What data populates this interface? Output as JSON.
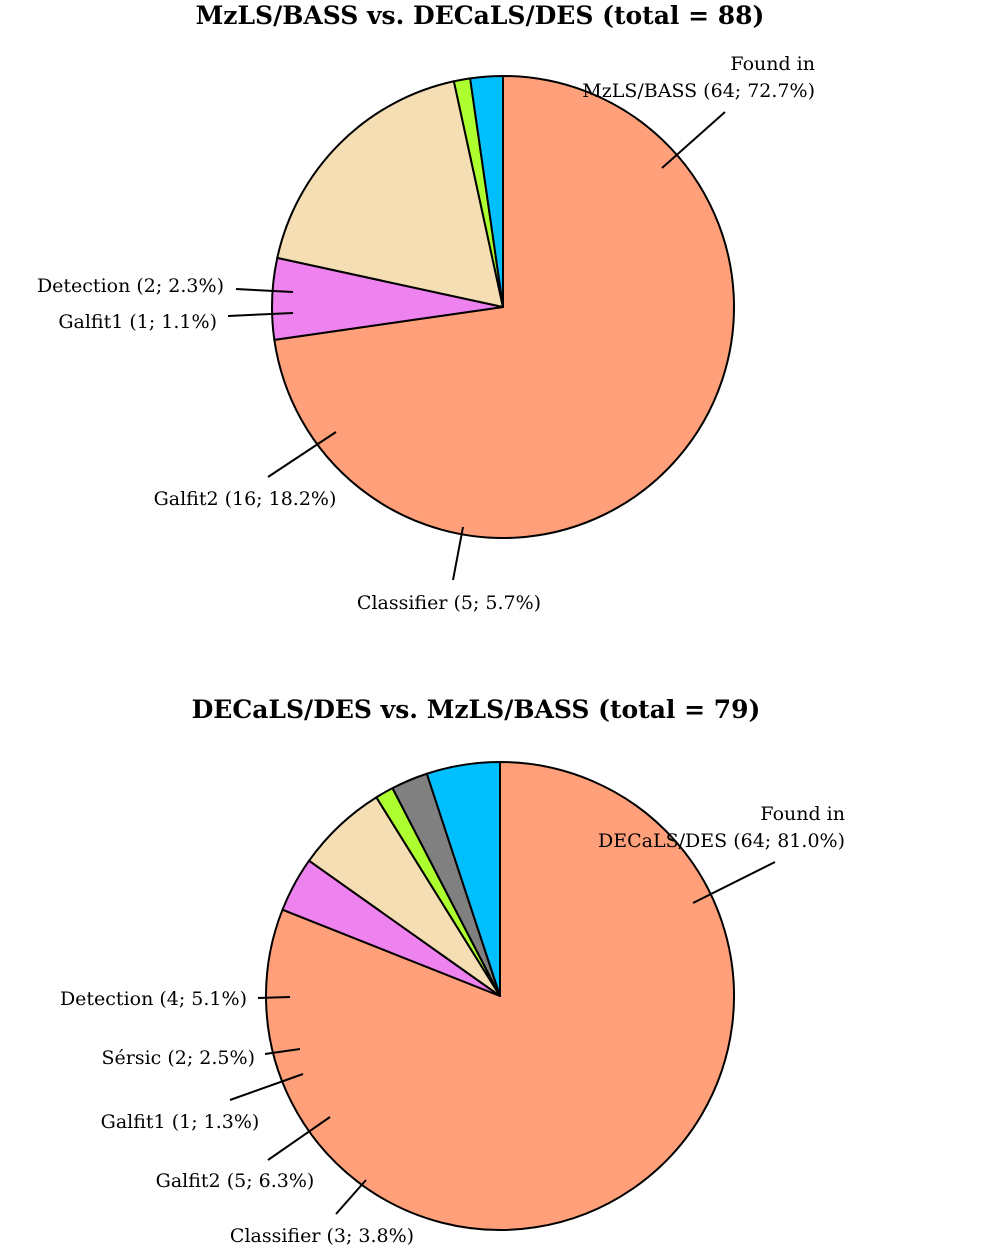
{
  "chart_data": [
    {
      "type": "pie",
      "title": "MzLS/BASS vs. DECaLS/DES (total = 88)",
      "slices": [
        {
          "label_lines": [
            "Found in",
            "MzLS/BASS (64; 72.7%)"
          ],
          "value": 64,
          "color": "#FFA07A"
        },
        {
          "label_lines": [
            "Classifier (5; 5.7%)"
          ],
          "value": 5,
          "color": "#EE82EE"
        },
        {
          "label_lines": [
            "Galfit2 (16; 18.2%)"
          ],
          "value": 16,
          "color": "#F5DEB3"
        },
        {
          "label_lines": [
            "Galfit1 (1; 1.1%)"
          ],
          "value": 1,
          "color": "#ADFF2F"
        },
        {
          "label_lines": [
            "Detection (2; 2.3%)"
          ],
          "value": 2,
          "color": "#00BFFF"
        }
      ]
    },
    {
      "type": "pie",
      "title": "DECaLS/DES vs. MzLS/BASS (total = 79)",
      "slices": [
        {
          "label_lines": [
            "Found in",
            "DECaLS/DES (64; 81.0%)"
          ],
          "value": 64,
          "color": "#FFA07A"
        },
        {
          "label_lines": [
            "Classifier (3; 3.8%)"
          ],
          "value": 3,
          "color": "#EE82EE"
        },
        {
          "label_lines": [
            "Galfit2 (5; 6.3%)"
          ],
          "value": 5,
          "color": "#F5DEB3"
        },
        {
          "label_lines": [
            "Galfit1 (1; 1.3%)"
          ],
          "value": 1,
          "color": "#ADFF2F"
        },
        {
          "label_lines": [
            "Sérsic (2; 2.5%)"
          ],
          "value": 2,
          "color": "#808080"
        },
        {
          "label_lines": [
            "Detection (4; 5.1%)"
          ],
          "value": 4,
          "color": "#00BFFF"
        }
      ]
    }
  ]
}
